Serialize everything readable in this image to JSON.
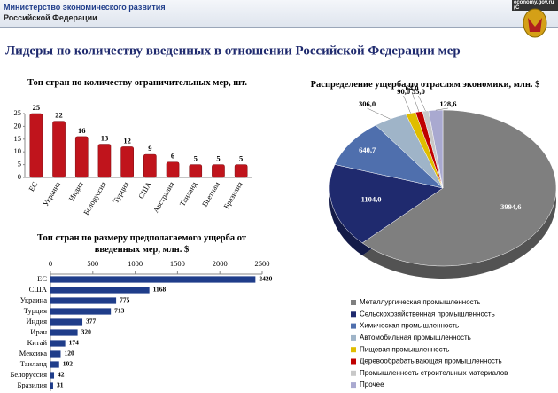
{
  "header": {
    "ministry": "Министерство экономического развития",
    "country": "Российской Федерации",
    "site": "economy.gov.ru (C"
  },
  "slide_title": "Лидеры по количеству введенных в отношении Российской Федерации мер",
  "chart_data": [
    {
      "type": "bar",
      "title": "Топ стран по количеству ограничительных мер, шт.",
      "categories": [
        "ЕС",
        "Украина",
        "Индия",
        "Белоруссия",
        "Турция",
        "США",
        "Австралия",
        "Таиланд",
        "Вьетнам",
        "Бразилия"
      ],
      "values": [
        25,
        22,
        16,
        13,
        12,
        9,
        6,
        5,
        5,
        5
      ],
      "color": "#c0141c",
      "ylim": [
        0,
        25
      ],
      "yticks": [
        0,
        5,
        10,
        15,
        20,
        25
      ]
    },
    {
      "type": "hbar",
      "title": "Топ стран по размеру предполагаемого ущерба от введенных мер, млн. $",
      "categories": [
        "ЕС",
        "США",
        "Украина",
        "Турция",
        "Индия",
        "Иран",
        "Китай",
        "Мексика",
        "Таиланд",
        "Белоруссия",
        "Бразилия"
      ],
      "values": [
        2420,
        1168,
        775,
        713,
        377,
        320,
        174,
        120,
        102,
        42,
        31
      ],
      "color": "#1f3d8a",
      "xlim": [
        0,
        2500
      ],
      "xticks": [
        0,
        500,
        1000,
        1500,
        2000,
        2500
      ]
    },
    {
      "type": "pie",
      "title": "Распределение ущерба по отраслям экономики, млн. $",
      "categories": [
        "Металлургическая промышленность",
        "Сельскохозяйственная промышленность",
        "Химическая промышленность",
        "Автомобильная промышленность",
        "Пищевая промышленность",
        "Деревообрабатывающая промышленность",
        "Промышленность строительных материалов",
        "Прочее"
      ],
      "values": [
        3994.6,
        1104.0,
        640.7,
        306.0,
        90.0,
        64.0,
        55.0,
        128.6
      ],
      "value_labels": [
        "3994,6",
        "1104,0",
        "640,7",
        "306,0",
        "90,0",
        "64,0",
        "55,0",
        "128,6"
      ],
      "colors": [
        "#7f7f7f",
        "#1f2a6e",
        "#4f6fad",
        "#9fb4c8",
        "#e0bd00",
        "#c00000",
        "#c8c8c8",
        "#a9a9d0"
      ]
    }
  ]
}
